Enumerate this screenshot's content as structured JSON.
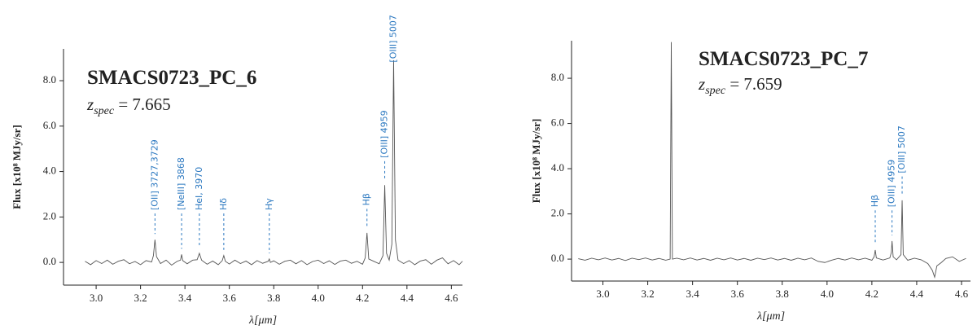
{
  "chart_data": [
    {
      "type": "line",
      "title": "SMACS0723_PC_6",
      "redshift_label": [
        "z",
        "spec",
        " = 7.665"
      ],
      "xlabel": "λ[μm]",
      "ylabel": "Flux [x10⁸ MJy/sr]",
      "xlim": [
        2.853,
        4.65
      ],
      "ylim": [
        -1.0,
        9.4
      ],
      "xticks": [
        {
          "value": 3.0,
          "label": "3.0"
        },
        {
          "value": 3.2,
          "label": "3.2"
        },
        {
          "value": 3.4,
          "label": "3.4"
        },
        {
          "value": 3.6,
          "label": "3.6"
        },
        {
          "value": 3.8,
          "label": "3.8"
        },
        {
          "value": 4.0,
          "label": "4.0"
        },
        {
          "value": 4.2,
          "label": "4.2"
        },
        {
          "value": 4.4,
          "label": "4.4"
        },
        {
          "value": 4.6,
          "label": "4.6"
        }
      ],
      "yticks": [
        {
          "value": 0,
          "label": "0.0"
        },
        {
          "value": 2,
          "label": "2.0"
        },
        {
          "value": 4,
          "label": "4.0"
        },
        {
          "value": 6,
          "label": "6.0"
        },
        {
          "value": 8,
          "label": "8.0"
        }
      ],
      "color": "#555555",
      "annotation_color": "#2b78c0",
      "x": [
        2.95,
        2.975,
        3.0,
        3.025,
        3.05,
        3.075,
        3.1,
        3.125,
        3.15,
        3.175,
        3.2,
        3.225,
        3.25,
        3.258,
        3.265,
        3.272,
        3.29,
        3.315,
        3.34,
        3.365,
        3.38,
        3.385,
        3.39,
        3.41,
        3.435,
        3.455,
        3.465,
        3.475,
        3.5,
        3.525,
        3.55,
        3.568,
        3.575,
        3.582,
        3.6,
        3.625,
        3.65,
        3.675,
        3.7,
        3.725,
        3.75,
        3.775,
        3.78,
        3.785,
        3.8,
        3.825,
        3.85,
        3.875,
        3.9,
        3.925,
        3.95,
        3.975,
        4.0,
        4.025,
        4.05,
        4.075,
        4.1,
        4.125,
        4.15,
        4.175,
        4.2,
        4.212,
        4.22,
        4.228,
        4.25,
        4.275,
        4.292,
        4.3,
        4.308,
        4.32,
        4.332,
        4.34,
        4.348,
        4.36,
        4.385,
        4.41,
        4.435,
        4.46,
        4.485,
        4.51,
        4.535,
        4.56,
        4.585,
        4.61,
        4.635,
        4.65
      ],
      "values": [
        0.05,
        -0.1,
        0.08,
        -0.05,
        0.1,
        -0.08,
        0.05,
        0.12,
        -0.06,
        0.04,
        -0.1,
        0.08,
        0.02,
        0.3,
        1.0,
        0.25,
        -0.05,
        0.1,
        -0.12,
        0.05,
        0.1,
        0.35,
        0.08,
        -0.06,
        0.1,
        0.12,
        0.4,
        0.1,
        -0.08,
        0.06,
        -0.1,
        0.08,
        0.3,
        0.05,
        -0.07,
        0.1,
        -0.05,
        0.06,
        -0.1,
        0.08,
        -0.04,
        0.05,
        0.15,
        0.0,
        0.07,
        -0.08,
        0.05,
        0.1,
        -0.06,
        0.08,
        -0.1,
        0.04,
        0.1,
        -0.05,
        0.07,
        -0.09,
        0.06,
        0.1,
        -0.04,
        0.05,
        -0.08,
        0.2,
        1.3,
        0.15,
        0.05,
        -0.06,
        0.3,
        3.4,
        0.4,
        0.1,
        0.8,
        8.9,
        1.0,
        0.1,
        -0.05,
        0.08,
        -0.1,
        0.06,
        0.12,
        -0.08,
        0.1,
        0.2,
        -0.06,
        0.08,
        -0.1,
        0.05
      ],
      "lines": [
        {
          "label": "[OII] 3727,3729",
          "x": 3.265
        },
        {
          "label": "[NeIII] 3868",
          "x": 3.385
        },
        {
          "label": "HeI, 3970",
          "x": 3.465
        },
        {
          "label": "Hδ",
          "x": 3.575
        },
        {
          "label": "Hγ",
          "x": 3.78
        },
        {
          "label": "Hβ",
          "x": 4.22
        },
        {
          "label": "[OIII] 4959",
          "x": 4.3
        },
        {
          "label": "[OIII] 5007",
          "x": 4.34
        }
      ]
    },
    {
      "type": "line",
      "title": "SMACS0723_PC_7",
      "redshift_label": [
        "z",
        "spec",
        " = 7.659"
      ],
      "xlabel": "λ[μm]",
      "ylabel": "Flux [x10⁸ MJy/sr]",
      "xlim": [
        2.86,
        4.64
      ],
      "ylim": [
        -0.97,
        9.66
      ],
      "xticks": [
        {
          "value": 3.0,
          "label": "3.0"
        },
        {
          "value": 3.2,
          "label": "3.2"
        },
        {
          "value": 3.4,
          "label": "3.4"
        },
        {
          "value": 3.6,
          "label": "3.6"
        },
        {
          "value": 3.8,
          "label": "3.8"
        },
        {
          "value": 4.0,
          "label": "4.0"
        },
        {
          "value": 4.2,
          "label": "4.2"
        },
        {
          "value": 4.4,
          "label": "4.4"
        },
        {
          "value": 4.6,
          "label": "4.6"
        }
      ],
      "yticks": [
        {
          "value": 0,
          "label": "0.0"
        },
        {
          "value": 2,
          "label": "2.0"
        },
        {
          "value": 4,
          "label": "4.0"
        },
        {
          "value": 6,
          "label": "6.0"
        },
        {
          "value": 8,
          "label": "8.0"
        }
      ],
      "color": "#555555",
      "annotation_color": "#2b78c0",
      "x": [
        2.89,
        2.92,
        2.95,
        2.98,
        3.01,
        3.04,
        3.07,
        3.1,
        3.13,
        3.16,
        3.19,
        3.22,
        3.25,
        3.28,
        3.3,
        3.305,
        3.31,
        3.33,
        3.36,
        3.39,
        3.42,
        3.45,
        3.48,
        3.51,
        3.54,
        3.57,
        3.6,
        3.63,
        3.66,
        3.69,
        3.72,
        3.75,
        3.78,
        3.81,
        3.84,
        3.87,
        3.9,
        3.93,
        3.96,
        3.99,
        4.02,
        4.05,
        4.08,
        4.11,
        4.14,
        4.17,
        4.2,
        4.21,
        4.215,
        4.22,
        4.25,
        4.28,
        4.287,
        4.29,
        4.295,
        4.31,
        4.33,
        4.335,
        4.34,
        4.36,
        4.39,
        4.42,
        4.45,
        4.47,
        4.48,
        4.49,
        4.51,
        4.53,
        4.56,
        4.59,
        4.62
      ],
      "values": [
        0.02,
        -0.05,
        0.04,
        -0.03,
        0.05,
        -0.04,
        0.03,
        -0.06,
        0.04,
        -0.02,
        0.05,
        -0.04,
        0.03,
        -0.05,
        0.0,
        9.6,
        0.0,
        0.04,
        -0.03,
        0.05,
        -0.04,
        0.03,
        -0.05,
        0.04,
        -0.03,
        0.05,
        -0.04,
        0.03,
        -0.05,
        0.04,
        -0.02,
        0.05,
        -0.04,
        0.03,
        -0.05,
        0.04,
        -0.03,
        0.05,
        -0.1,
        -0.15,
        -0.05,
        0.03,
        -0.04,
        0.05,
        -0.03,
        0.04,
        -0.05,
        0.1,
        0.4,
        0.05,
        -0.04,
        0.05,
        0.3,
        0.8,
        0.1,
        -0.03,
        0.2,
        2.6,
        0.2,
        -0.05,
        0.04,
        -0.03,
        -0.2,
        -0.5,
        -0.8,
        -0.3,
        -0.15,
        0.03,
        0.1,
        -0.1,
        0.03
      ],
      "lines": [
        {
          "label": "Hβ",
          "x": 4.215
        },
        {
          "label": "[OIII] 4959",
          "x": 4.29
        },
        {
          "label": "[OIII] 5007",
          "x": 4.335
        }
      ]
    }
  ]
}
